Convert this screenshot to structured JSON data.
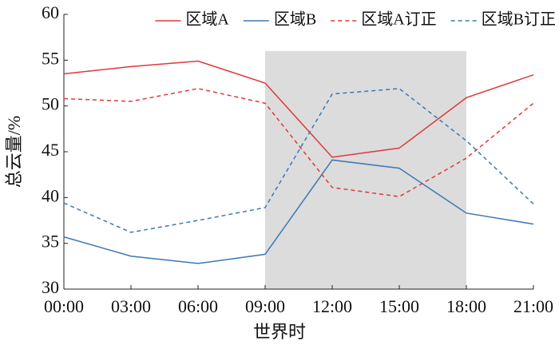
{
  "chart_data": {
    "type": "line",
    "x_label": "世界时",
    "y_label": "总云量/%",
    "categories": [
      "00:00",
      "03:00",
      "06:00",
      "09:00",
      "12:00",
      "15:00",
      "18:00",
      "21:00"
    ],
    "series": [
      {
        "name": "区域A",
        "color": "#e0373a",
        "dashed": false,
        "values": [
          53.5,
          54.3,
          54.9,
          52.5,
          44.4,
          45.4,
          50.9,
          53.4
        ]
      },
      {
        "name": "区域B",
        "color": "#3a78b5",
        "dashed": false,
        "values": [
          35.7,
          33.6,
          32.8,
          33.8,
          44.1,
          43.2,
          38.3,
          37.1
        ]
      },
      {
        "name": "区域A订正",
        "color": "#e0373a",
        "dashed": true,
        "values": [
          50.8,
          50.5,
          51.9,
          50.3,
          41.1,
          40.1,
          44.3,
          50.3
        ]
      },
      {
        "name": "区域B订正",
        "color": "#3a78b5",
        "dashed": true,
        "values": [
          39.4,
          36.2,
          37.5,
          38.9,
          51.3,
          51.9,
          46.2,
          39.3
        ]
      }
    ],
    "shaded": {
      "x": [
        "09:00",
        "18:00"
      ],
      "ymax": 56,
      "color": "#dcdcdc"
    },
    "ylim": [
      30,
      60
    ],
    "yticks": [
      30,
      35,
      40,
      45,
      50,
      55,
      60
    ],
    "legend": "top-right"
  }
}
